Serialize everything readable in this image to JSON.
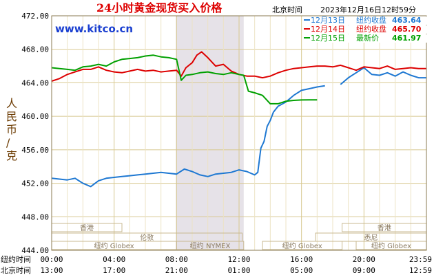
{
  "chart_data": {
    "type": "line",
    "title": "24小时黄金现货买入价格",
    "header_time_label": "北京时间",
    "header_datetime": "2023年12月16日12时59分",
    "watermark": "www.kitco.cn",
    "ylabel": "人民币/克",
    "ylim": [
      444,
      472
    ],
    "yticks": [
      "472.00",
      "468.00",
      "464.00",
      "460.00",
      "456.00",
      "452.00",
      "448.00",
      "444.00"
    ],
    "xlim": [
      0,
      24
    ],
    "x_tick_positions": [
      0,
      4,
      8,
      12,
      16,
      20,
      24
    ],
    "x_rows": [
      {
        "label": "纽约时间",
        "ticks": [
          "00:00",
          "04:00",
          "08:00",
          "12:00",
          "16:00",
          "20:00",
          "23:59"
        ]
      },
      {
        "label": "北京时间",
        "ticks": [
          "13:00",
          "17:00",
          "21:00",
          "01:00",
          "05:00",
          "09:00",
          "12:59"
        ]
      }
    ],
    "shaded_region": [
      7.95,
      12.3
    ],
    "grid": true,
    "legend": "top-right",
    "market_sessions": [
      {
        "label": "香港",
        "row": 0,
        "start": 0,
        "end": 4.5
      },
      {
        "label": "香港",
        "row": 0,
        "start": 18.6,
        "end": 24
      },
      {
        "label": "伦敦",
        "row": 1,
        "start": 0,
        "end": 12.2
      },
      {
        "label": "悉尼",
        "row": 1,
        "start": 16.9,
        "end": 24
      },
      {
        "label": "纽约 Globex",
        "row": 2,
        "start": 0,
        "end": 8.0
      },
      {
        "label": "纽约 NYMEX",
        "row": 2,
        "start": 8.0,
        "end": 12.3
      },
      {
        "label": "纽约 Globex",
        "row": 2,
        "start": 13.5,
        "end": 18.6
      },
      {
        "label": "纽约 Globex",
        "row": 2,
        "start": 19.5,
        "end": 24
      }
    ],
    "series": [
      {
        "name": "12月13日",
        "price_label": "纽约收盘",
        "price": "463.64",
        "color": "#1e78d2",
        "x": [
          0,
          0.5,
          1,
          1.5,
          2,
          2.5,
          3,
          3.5,
          4,
          4.5,
          5,
          5.5,
          6,
          6.5,
          7,
          7.5,
          8,
          8.5,
          9,
          9.5,
          10,
          10.5,
          11,
          11.5,
          12,
          12.5,
          13,
          13.2,
          13.4,
          13.6,
          13.8,
          14,
          14.2,
          14.5,
          15,
          15.5,
          16,
          16.5,
          17,
          17.5,
          18,
          18.5,
          19,
          19.5,
          20,
          20.5,
          21,
          21.5,
          22,
          22.5,
          23,
          23.5,
          24
        ],
        "y": [
          452.6,
          452.5,
          452.4,
          452.6,
          452.0,
          451.6,
          452.3,
          452.6,
          452.7,
          452.8,
          452.9,
          453.0,
          453.1,
          453.2,
          453.3,
          453.2,
          453.1,
          453.7,
          453.4,
          453.0,
          452.8,
          453.1,
          453.2,
          453.3,
          453.6,
          453.4,
          453.0,
          453.3,
          456.2,
          457.0,
          458.8,
          459.5,
          460.5,
          461.2,
          461.7,
          462.5,
          463.1,
          463.3,
          463.5,
          463.64,
          null,
          463.8,
          464.6,
          465.2,
          465.8,
          465.0,
          464.9,
          465.2,
          464.8,
          465.3,
          464.9,
          464.6,
          464.6
        ]
      },
      {
        "name": "12月14日",
        "price_label": "纽约收盘",
        "price": "465.70",
        "color": "#dd0000",
        "x": [
          0,
          0.5,
          1,
          1.5,
          2,
          2.5,
          3,
          3.5,
          4,
          4.5,
          5,
          5.5,
          6,
          6.5,
          7,
          7.5,
          8,
          8.3,
          8.6,
          9,
          9.3,
          9.6,
          10,
          10.5,
          11,
          11.5,
          12,
          12.5,
          13,
          13.5,
          14,
          14.5,
          15,
          15.5,
          16,
          16.5,
          17,
          17.5,
          18,
          18.5,
          19,
          19.5,
          20,
          20.5,
          21,
          21.5,
          22,
          22.5,
          23,
          23.5,
          24
        ],
        "y": [
          464.2,
          464.5,
          465.0,
          465.3,
          465.6,
          465.6,
          465.9,
          465.5,
          465.3,
          465.2,
          465.4,
          465.6,
          465.4,
          465.5,
          465.3,
          465.4,
          465.5,
          464.8,
          465.8,
          466.4,
          467.3,
          467.7,
          467.0,
          466.0,
          466.2,
          465.4,
          465.0,
          464.8,
          464.8,
          464.6,
          464.8,
          465.2,
          465.5,
          465.7,
          465.8,
          465.9,
          466.0,
          466.0,
          465.9,
          466.1,
          465.8,
          465.5,
          465.9,
          465.8,
          465.7,
          466.0,
          465.6,
          465.7,
          465.8,
          465.7,
          465.7
        ]
      },
      {
        "name": "12月15日",
        "price_label": "最新价",
        "price": "461.97",
        "color": "#00a000",
        "x": [
          0,
          0.5,
          1,
          1.5,
          2,
          2.5,
          3,
          3.5,
          4,
          4.5,
          5,
          5.5,
          6,
          6.5,
          7,
          7.5,
          8,
          8.3,
          8.6,
          9,
          9.5,
          10,
          10.5,
          11,
          11.5,
          12,
          12.3,
          12.6,
          13,
          13.5,
          14,
          14.5,
          15,
          15.5,
          16,
          16.5,
          17
        ],
        "y": [
          465.8,
          465.7,
          465.6,
          465.5,
          465.9,
          466.0,
          466.2,
          466.0,
          466.5,
          466.8,
          466.9,
          467.0,
          467.2,
          467.3,
          467.1,
          467.0,
          466.8,
          464.3,
          464.9,
          465.0,
          465.2,
          465.3,
          465.1,
          465.0,
          465.2,
          465.0,
          464.9,
          463.0,
          462.8,
          462.5,
          461.5,
          461.5,
          461.8,
          461.9,
          461.95,
          461.97,
          461.97
        ]
      }
    ]
  }
}
